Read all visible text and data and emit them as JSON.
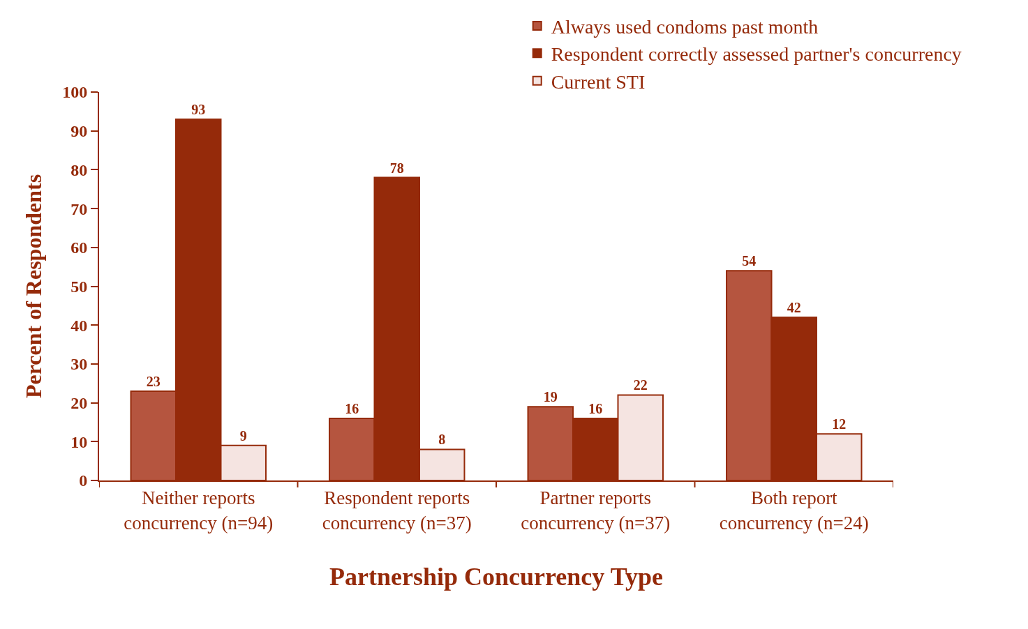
{
  "chart_data": {
    "type": "bar",
    "xlabel": "Partnership Concurrency Type",
    "ylabel": "Percent of Respondents",
    "categories": [
      "Neither reports\nconcurrency (n=94)",
      "Respondent reports\nconcurrency (n=37)",
      "Partner reports\nconcurrency (n=37)",
      "Both report\nconcurrency (n=24)"
    ],
    "series": [
      {
        "name": "Always used condoms past month",
        "color": "#b5553f",
        "values": [
          23,
          16,
          19,
          54
        ]
      },
      {
        "name": "Respondent correctly assessed partner's concurrency",
        "color": "#952a0a",
        "values": [
          93,
          78,
          16,
          42
        ]
      },
      {
        "name": "Current STI",
        "color": "#f5e4e1",
        "values": [
          9,
          8,
          22,
          12
        ]
      }
    ],
    "ylim": [
      0,
      100
    ],
    "yticks": [
      0,
      10,
      20,
      30,
      40,
      50,
      60,
      70,
      80,
      90,
      100
    ],
    "grid": false,
    "legend": "top right",
    "data_labels": true
  }
}
